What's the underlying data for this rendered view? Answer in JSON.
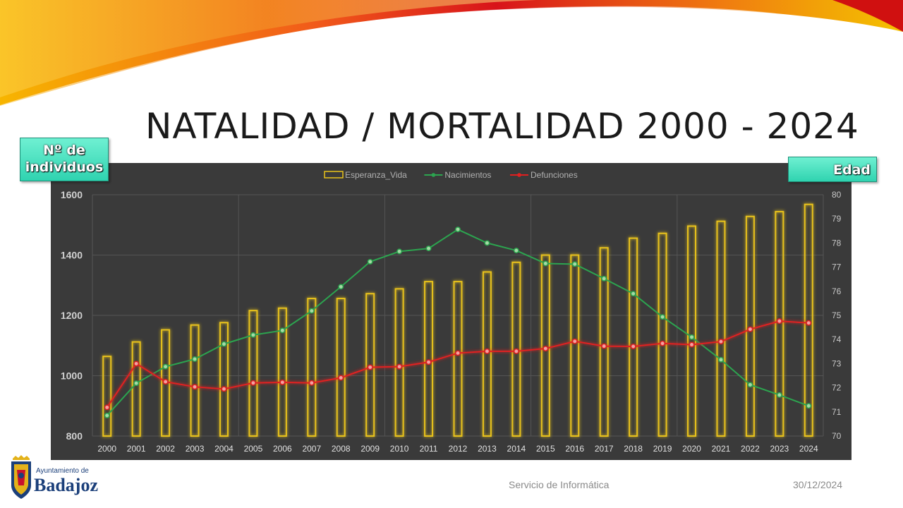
{
  "title": "NATALIDAD / MORTALIDAD 2000 - 2024",
  "badges": {
    "left_line1": "Nº de",
    "left_line2": "individuos",
    "right": "Edad"
  },
  "footer": {
    "center": "Servicio de Informática",
    "date": "30/12/2024"
  },
  "logo": {
    "small": "Ayuntamiento de",
    "big": "Badajoz"
  },
  "colors": {
    "bar": "#e8c21a",
    "nacimientos": "#2ca44f",
    "defunciones": "#e02020",
    "panel": "#3a3a3a"
  },
  "chart_data": {
    "type": "bar",
    "categories": [
      "2000",
      "2001",
      "2002",
      "2003",
      "2004",
      "2005",
      "2006",
      "2007",
      "2008",
      "2009",
      "2010",
      "2011",
      "2012",
      "2013",
      "2014",
      "2015",
      "2016",
      "2017",
      "2018",
      "2019",
      "2020",
      "2021",
      "2022",
      "2023",
      "2024"
    ],
    "series": [
      {
        "name": "Esperanza_Vida",
        "type": "bar",
        "axis": "right",
        "values": [
          73.3,
          73.9,
          74.4,
          74.6,
          74.7,
          75.2,
          75.3,
          75.7,
          75.7,
          75.9,
          76.1,
          76.4,
          76.4,
          76.8,
          77.2,
          77.5,
          77.5,
          77.8,
          78.2,
          78.4,
          78.7,
          78.9,
          79.1,
          79.3,
          79.6
        ]
      },
      {
        "name": "Nacimientos",
        "type": "line",
        "axis": "left",
        "values": [
          868,
          975,
          1030,
          1055,
          1105,
          1135,
          1150,
          1215,
          1295,
          1378,
          1412,
          1422,
          1485,
          1440,
          1415,
          1372,
          1370,
          1322,
          1272,
          1195,
          1128,
          1053,
          970,
          936,
          900
        ]
      },
      {
        "name": "Defunciones",
        "type": "line",
        "axis": "left",
        "values": [
          895,
          1040,
          980,
          963,
          956,
          976,
          978,
          976,
          993,
          1028,
          1030,
          1045,
          1075,
          1081,
          1081,
          1090,
          1114,
          1098,
          1097,
          1107,
          1103,
          1113,
          1154,
          1181,
          1175
        ]
      }
    ],
    "y_left": {
      "min": 800,
      "max": 1600,
      "ticks": [
        800,
        1000,
        1200,
        1400,
        1600
      ]
    },
    "y_right": {
      "min": 70,
      "max": 80,
      "ticks": [
        70,
        71,
        72,
        73,
        74,
        75,
        76,
        77,
        78,
        79,
        80
      ]
    },
    "legend_position": "top-center"
  }
}
